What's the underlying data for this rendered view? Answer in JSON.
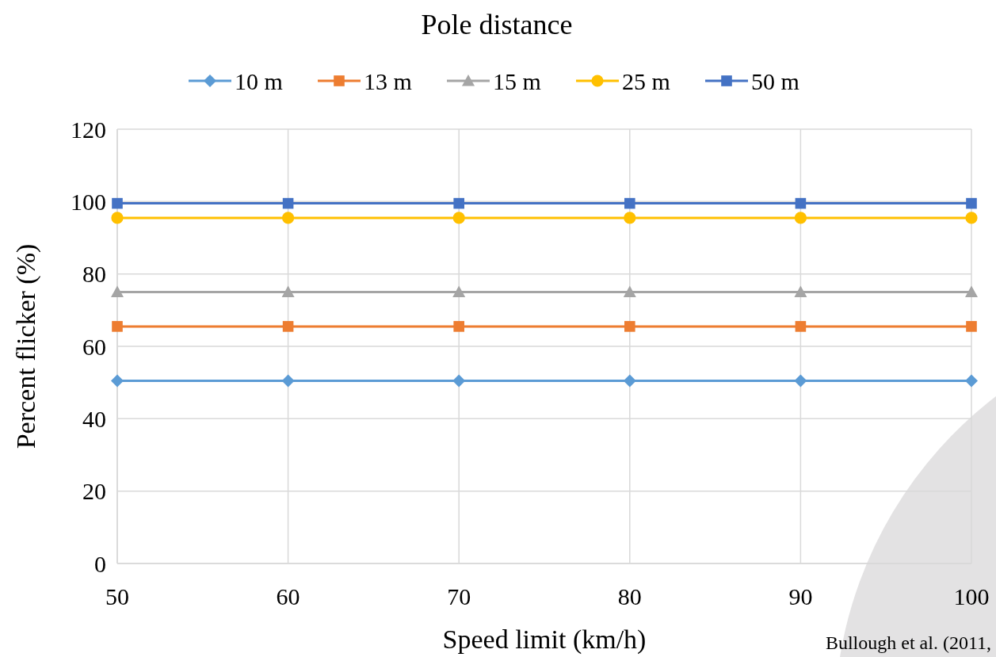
{
  "chart_data": {
    "type": "line",
    "title": "Pole distance",
    "xlabel": "Speed limit (km/h)",
    "ylabel": "Percent flicker (%)",
    "x": [
      50,
      60,
      70,
      80,
      90,
      100
    ],
    "xlim": [
      50,
      100
    ],
    "xticks": [
      50,
      60,
      70,
      80,
      90,
      100
    ],
    "ylim": [
      0,
      120
    ],
    "yticks": [
      0,
      20,
      40,
      60,
      80,
      100,
      120
    ],
    "grid": true,
    "legend": "top",
    "line_style": "solid",
    "series": [
      {
        "name": "10 m",
        "color": "#5b9bd5",
        "marker": "diamond",
        "values": [
          50.5,
          50.5,
          50.5,
          50.5,
          50.5,
          50.5
        ]
      },
      {
        "name": "13 m",
        "color": "#ed7d31",
        "marker": "square",
        "values": [
          65.5,
          65.5,
          65.5,
          65.5,
          65.5,
          65.5
        ]
      },
      {
        "name": "15 m",
        "color": "#a5a5a5",
        "marker": "triangle",
        "values": [
          75,
          75,
          75,
          75,
          75,
          75
        ]
      },
      {
        "name": "25 m",
        "color": "#ffc000",
        "marker": "circle",
        "values": [
          95.5,
          95.5,
          95.5,
          95.5,
          95.5,
          95.5
        ]
      },
      {
        "name": "50 m",
        "color": "#4472c4",
        "marker": "square",
        "values": [
          99.5,
          99.5,
          99.5,
          99.5,
          99.5,
          99.5
        ]
      }
    ],
    "annotations": [
      "Bullough et al. (2011,"
    ]
  }
}
